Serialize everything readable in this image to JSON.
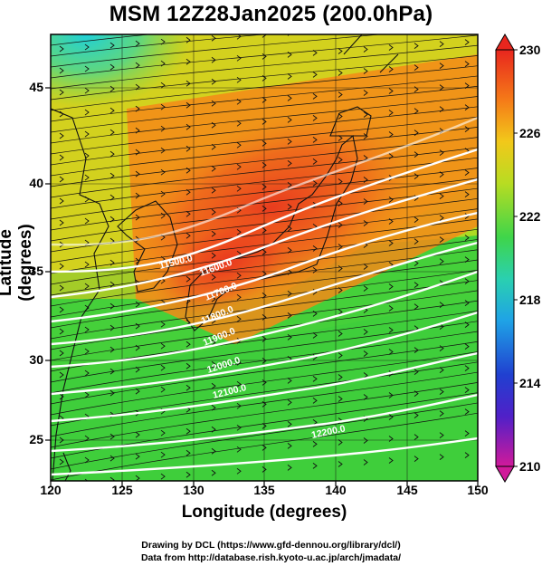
{
  "title": "MSM 12Z28Jan2025 (200.0hPa)",
  "axes": {
    "xlabel": "Longitude (degrees)",
    "ylabel": "Latitude  (degrees)",
    "xticks": [
      "120",
      "125",
      "130",
      "135",
      "140",
      "145",
      "150"
    ],
    "yticks": [
      "45",
      "40",
      "35",
      "30",
      "25"
    ]
  },
  "colorbar": {
    "labels": [
      "230",
      "226",
      "222",
      "218",
      "214",
      "210"
    ],
    "range": [
      210,
      230
    ],
    "colors": [
      "#d11a9a",
      "#2b1fc8",
      "#1fa3e6",
      "#2fcf8f",
      "#4cd133",
      "#d8df1e",
      "#f79a13",
      "#ee2a1e"
    ]
  },
  "contours": {
    "labels": [
      "11500.0",
      "11600.0",
      "11700.0",
      "11800.0",
      "11900.0",
      "12000.0",
      "12100.0",
      "12200.0"
    ]
  },
  "credits": [
    "Drawing by DCL (https://www.gfd-dennou.org/library/dcl/)",
    "Data from http://database.rish.kyoto-u.ac.jp/arch/jmadata/"
  ]
}
